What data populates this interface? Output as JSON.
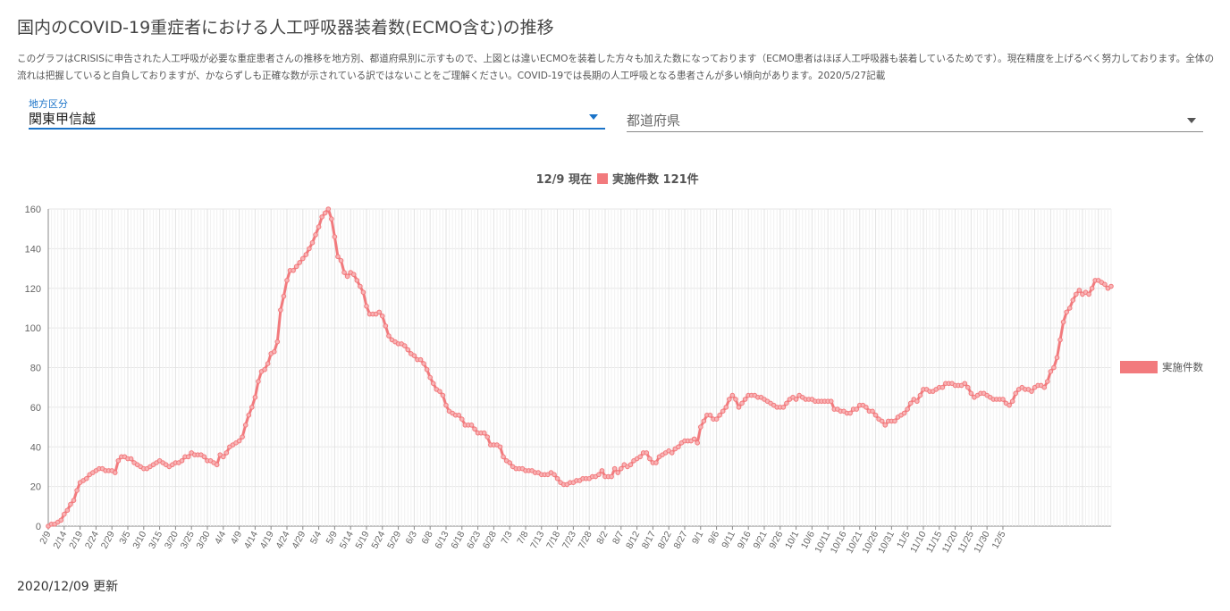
{
  "page": {
    "title": "国内のCOVID-19重症者における人工呼吸器装着数(ECMO含む)の推移",
    "description": "このグラフはCRISISに申告された人工呼吸が必要な重症患者さんの推移を地方別、都道府県別に示すもので、上図とは違いECMOを装着した方々も加えた数になっております（ECMO患者はほぼ人工呼吸器も装着しているためです）。現在精度を上げるべく努力しております。全体の流れは把握していると自負しておりますが、かならずしも正確な数が示されている訳ではないことをご理解ください。COVID-19では長期の人工呼吸となる患者さんが多い傾向があります。2020/5/27記載",
    "updated": "2020/12/09 更新"
  },
  "filters": {
    "region": {
      "label": "地方区分",
      "value": "関東甲信越"
    },
    "prefecture": {
      "placeholder": "都道府県"
    }
  },
  "colors": {
    "series": "#f27a7d",
    "accent": "#1a73c8",
    "grid": "#e6e6e6"
  },
  "chart_data": {
    "type": "line",
    "header": {
      "date": "12/9 現在",
      "series": "実施件数",
      "count": "121件"
    },
    "legend_position": "right",
    "grid": true,
    "ylim": [
      0,
      160
    ],
    "y_ticks": [
      0,
      20,
      40,
      60,
      80,
      100,
      120,
      140,
      160
    ],
    "x_tick_labels": [
      "2/9",
      "2/14",
      "2/19",
      "2/24",
      "2/29",
      "3/5",
      "3/10",
      "3/15",
      "3/20",
      "3/25",
      "3/30",
      "4/4",
      "4/9",
      "4/14",
      "4/19",
      "4/24",
      "4/29",
      "5/4",
      "5/9",
      "5/14",
      "5/19",
      "5/24",
      "5/29",
      "6/3",
      "6/8",
      "6/13",
      "6/18",
      "6/23",
      "6/28",
      "7/3",
      "7/8",
      "7/13",
      "7/18",
      "7/23",
      "7/28",
      "8/2",
      "8/7",
      "8/12",
      "8/17",
      "8/22",
      "8/27",
      "9/1",
      "9/6",
      "9/11",
      "9/16",
      "9/21",
      "9/26",
      "10/1",
      "10/6",
      "10/11",
      "10/16",
      "10/21",
      "10/26",
      "10/31",
      "11/5",
      "11/10",
      "11/15",
      "11/20",
      "11/25",
      "11/30",
      "12/5"
    ],
    "series": [
      {
        "name": "実施件数",
        "start_date": "2020-02-09",
        "values": [
          0,
          1,
          1,
          2,
          3,
          6,
          8,
          11,
          13,
          18,
          22,
          23,
          24,
          26,
          27,
          28,
          29,
          29,
          28,
          28,
          28,
          27,
          33,
          35,
          35,
          34,
          34,
          32,
          31,
          30,
          29,
          29,
          30,
          31,
          32,
          33,
          32,
          31,
          30,
          31,
          32,
          32,
          33,
          35,
          35,
          37,
          36,
          36,
          36,
          35,
          33,
          33,
          32,
          31,
          36,
          35,
          37,
          40,
          41,
          42,
          43,
          45,
          51,
          56,
          60,
          65,
          73,
          78,
          79,
          82,
          87,
          88,
          93,
          109,
          116,
          124,
          129,
          129,
          131,
          133,
          135,
          137,
          140,
          143,
          147,
          151,
          156,
          158,
          160,
          155,
          146,
          136,
          134,
          128,
          126,
          128,
          127,
          124,
          121,
          118,
          111,
          107,
          107,
          107,
          108,
          106,
          101,
          96,
          94,
          93,
          92,
          92,
          91,
          89,
          87,
          86,
          84,
          84,
          82,
          79,
          75,
          72,
          69,
          68,
          66,
          61,
          58,
          57,
          56,
          56,
          54,
          51,
          51,
          51,
          49,
          47,
          47,
          47,
          45,
          41,
          41,
          41,
          40,
          35,
          33,
          32,
          30,
          29,
          29,
          29,
          28,
          28,
          28,
          27,
          27,
          26,
          26,
          26,
          27,
          26,
          24,
          22,
          21,
          21,
          22,
          22,
          23,
          23,
          24,
          24,
          24,
          25,
          25,
          26,
          28,
          25,
          25,
          25,
          29,
          27,
          29,
          31,
          30,
          31,
          33,
          34,
          35,
          37,
          37,
          34,
          32,
          32,
          35,
          36,
          37,
          38,
          37,
          39,
          40,
          42,
          43,
          43,
          43,
          44,
          42,
          50,
          53,
          56,
          56,
          54,
          54,
          56,
          58,
          60,
          64,
          66,
          64,
          60,
          62,
          64,
          66,
          66,
          66,
          65,
          65,
          64,
          63,
          62,
          61,
          60,
          60,
          60,
          62,
          64,
          65,
          64,
          66,
          65,
          64,
          64,
          64,
          63,
          63,
          63,
          63,
          63,
          63,
          59,
          59,
          58,
          58,
          57,
          57,
          59,
          59,
          61,
          61,
          60,
          58,
          58,
          56,
          54,
          53,
          51,
          53,
          53,
          53,
          55,
          56,
          57,
          59,
          62,
          64,
          63,
          66,
          69,
          69,
          68,
          68,
          69,
          70,
          70,
          72,
          72,
          72,
          71,
          71,
          71,
          72,
          70,
          67,
          65,
          66,
          67,
          67,
          66,
          65,
          64,
          64,
          64,
          64,
          62,
          61,
          63,
          67,
          69,
          70,
          69,
          69,
          68,
          70,
          71,
          71,
          70,
          73,
          78,
          80,
          85,
          94,
          103,
          108,
          110,
          114,
          117,
          119,
          117,
          118,
          117,
          120,
          124,
          124,
          123,
          122,
          120,
          121
        ]
      }
    ]
  }
}
